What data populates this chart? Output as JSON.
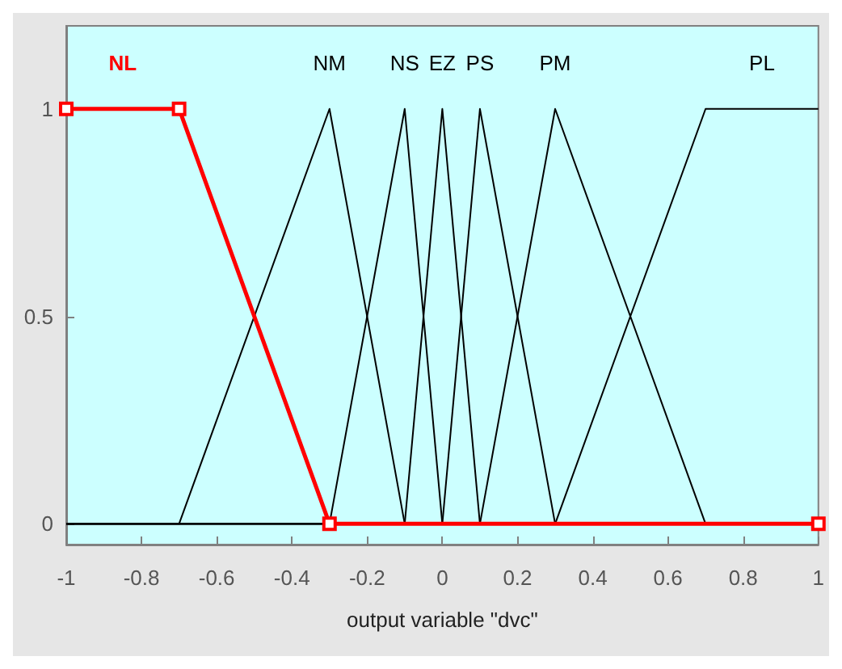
{
  "chart_data": {
    "type": "line",
    "xlabel": "output variable \"dvc\"",
    "xlim": [
      -1,
      1
    ],
    "xticks": [
      -1,
      -0.8,
      -0.6,
      -0.4,
      -0.2,
      0,
      0.2,
      0.4,
      0.6,
      0.8,
      1
    ],
    "ylim": [
      -0.05,
      1.2
    ],
    "yticks": [
      0,
      0.5,
      1
    ],
    "grid": false,
    "legend": false,
    "line_style": "solid",
    "series": [
      {
        "name": "NL",
        "color": "#ff0000",
        "marker": "square",
        "x": [
          -1,
          -0.7,
          -0.3,
          1
        ],
        "values": [
          1,
          1,
          0,
          0
        ]
      },
      {
        "name": "NM",
        "color": "#000000",
        "marker": "none",
        "x": [
          -1,
          -0.7,
          -0.3,
          -0.1,
          1
        ],
        "values": [
          0,
          0,
          1,
          0,
          0
        ]
      },
      {
        "name": "NS",
        "color": "#000000",
        "marker": "none",
        "x": [
          -1,
          -0.3,
          -0.1,
          0,
          1
        ],
        "values": [
          0,
          0,
          1,
          0,
          0
        ]
      },
      {
        "name": "EZ",
        "color": "#000000",
        "marker": "none",
        "x": [
          -1,
          -0.1,
          0,
          0.1,
          1
        ],
        "values": [
          0,
          0,
          1,
          0,
          0
        ]
      },
      {
        "name": "PS",
        "color": "#000000",
        "marker": "none",
        "x": [
          -1,
          0,
          0.1,
          0.3,
          1
        ],
        "values": [
          0,
          0,
          1,
          0,
          0
        ]
      },
      {
        "name": "PM",
        "color": "#000000",
        "marker": "none",
        "x": [
          -1,
          0.1,
          0.3,
          0.7,
          1
        ],
        "values": [
          0,
          0,
          1,
          0,
          0
        ]
      },
      {
        "name": "PL",
        "color": "#000000",
        "marker": "none",
        "x": [
          -1,
          0.3,
          0.7,
          1
        ],
        "values": [
          0,
          0,
          1,
          1
        ]
      }
    ]
  }
}
